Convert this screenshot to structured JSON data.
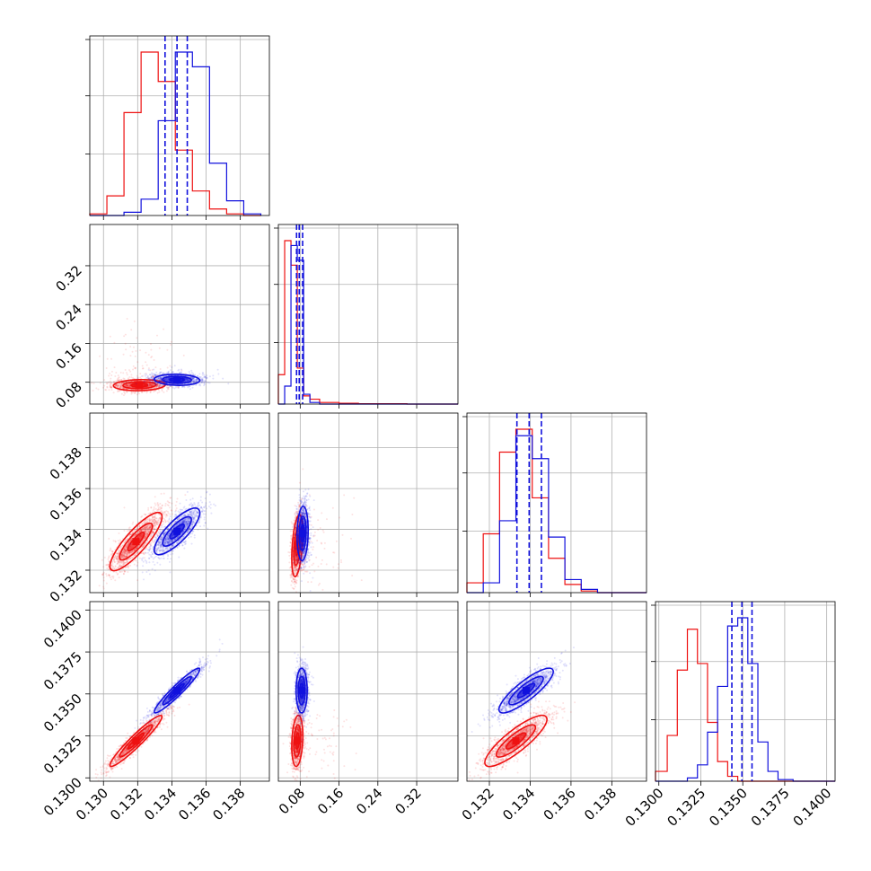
{
  "figure": {
    "type": "corner_plot",
    "n_params": 4,
    "colors": {
      "red": "#ee1111",
      "blue": "#1111dd",
      "grid": "#b0b0b0",
      "axis": "#000000"
    },
    "series": [
      "red",
      "blue"
    ]
  },
  "chart_data": [
    {
      "type": "histogram",
      "panel": "hist-p0",
      "param": 0,
      "xlim": [
        0.1292,
        0.1397
      ],
      "red": {
        "bins": [
          0.1292,
          0.1302,
          0.1312,
          0.1322,
          0.1332,
          0.1342,
          0.1352,
          0.1362,
          0.1372,
          0.1382,
          0.1392
        ],
        "heights_fraction": [
          0.01,
          0.12,
          0.63,
          1.0,
          0.82,
          0.4,
          0.15,
          0.04,
          0.01,
          0.0
        ]
      },
      "blue": {
        "bins": [
          0.1292,
          0.1302,
          0.1312,
          0.1322,
          0.1332,
          0.1342,
          0.1352,
          0.1362,
          0.1372,
          0.1382,
          0.1392
        ],
        "heights_fraction": [
          0.0,
          0.0,
          0.02,
          0.1,
          0.58,
          1.0,
          0.91,
          0.32,
          0.09,
          0.01
        ]
      },
      "quantile_lines": [
        0.1336,
        0.1343,
        0.1349
      ]
    },
    {
      "type": "histogram",
      "panel": "hist-p1",
      "param": 1,
      "xlim": [
        0.035,
        0.405
      ],
      "red": {
        "bins": [
          0.035,
          0.048,
          0.061,
          0.074,
          0.087,
          0.1,
          0.12,
          0.16,
          0.2,
          0.3,
          0.405
        ],
        "heights_fraction": [
          0.18,
          1.0,
          0.85,
          0.22,
          0.05,
          0.03,
          0.01,
          0.005,
          0.002,
          0.0
        ]
      },
      "blue": {
        "bins": [
          0.035,
          0.048,
          0.061,
          0.074,
          0.087,
          0.1,
          0.12,
          0.16,
          0.2,
          0.3,
          0.405
        ],
        "heights_fraction": [
          0.0,
          0.11,
          0.97,
          0.88,
          0.06,
          0.01,
          0.0,
          0.0,
          0.0,
          0.0
        ]
      },
      "quantile_lines": [
        0.0725,
        0.078,
        0.085
      ]
    },
    {
      "type": "histogram",
      "panel": "hist-p2",
      "param": 2,
      "xlim": [
        0.1309,
        0.1397
      ],
      "red": {
        "bins": [
          0.1309,
          0.1317,
          0.1325,
          0.1333,
          0.1341,
          0.1349,
          0.1357,
          0.1365,
          0.1373,
          0.1381,
          0.1397
        ],
        "heights_fraction": [
          0.06,
          0.36,
          0.86,
          1.0,
          0.58,
          0.21,
          0.05,
          0.01,
          0.0,
          0.0
        ]
      },
      "blue": {
        "bins": [
          0.1309,
          0.1317,
          0.1325,
          0.1333,
          0.1341,
          0.1349,
          0.1357,
          0.1365,
          0.1373,
          0.1381,
          0.1397
        ],
        "heights_fraction": [
          0.0,
          0.06,
          0.44,
          0.96,
          0.82,
          0.34,
          0.08,
          0.02,
          0.0,
          0.0
        ]
      },
      "quantile_lines": [
        0.13335,
        0.13395,
        0.13455
      ]
    },
    {
      "type": "histogram",
      "panel": "hist-p3",
      "param": 3,
      "xlim": [
        0.1298,
        0.1405
      ],
      "red": {
        "bins": [
          0.1298,
          0.1305,
          0.1311,
          0.1317,
          0.1323,
          0.1329,
          0.1335,
          0.1341,
          0.1347,
          0.1353,
          0.1359,
          0.1365,
          0.1371,
          0.138,
          0.1405
        ],
        "heights_fraction": [
          0.06,
          0.28,
          0.68,
          0.93,
          0.72,
          0.36,
          0.12,
          0.03,
          0.0,
          0.0,
          0.0,
          0.0,
          0.0,
          0.0
        ]
      },
      "blue": {
        "bins": [
          0.1298,
          0.1305,
          0.1311,
          0.1317,
          0.1323,
          0.1329,
          0.1335,
          0.1341,
          0.1347,
          0.1353,
          0.1359,
          0.1365,
          0.1371,
          0.138,
          0.1405
        ],
        "heights_fraction": [
          0.0,
          0.0,
          0.0,
          0.02,
          0.1,
          0.3,
          0.58,
          0.95,
          1.0,
          0.72,
          0.24,
          0.06,
          0.01,
          0.0
        ]
      },
      "quantile_lines": [
        0.13435,
        0.13495,
        0.13555
      ]
    },
    {
      "type": "scatter",
      "panel": "scatter-p1-vs-p0",
      "xparam": 0,
      "yparam": 1,
      "red": {
        "mean": [
          0.1321,
          0.074
        ],
        "sd": [
          0.0008,
          0.006
        ],
        "rho": 0.1,
        "tail_sd": [
          0.0012,
          0.06
        ]
      },
      "blue": {
        "mean": [
          0.1343,
          0.085
        ],
        "sd": [
          0.0007,
          0.006
        ],
        "rho": -0.1,
        "tail_sd": [
          0.001,
          0.01
        ]
      }
    },
    {
      "type": "scatter",
      "panel": "scatter-p2-vs-p0",
      "xparam": 0,
      "yparam": 2,
      "red": {
        "mean": [
          0.1319,
          0.1334
        ],
        "sd": [
          0.0008,
          0.00075
        ],
        "rho": 0.85,
        "tail_sd": [
          0.0012,
          0.0011
        ]
      },
      "blue": {
        "mean": [
          0.1343,
          0.1339
        ],
        "sd": [
          0.0007,
          0.0006
        ],
        "rho": 0.8,
        "tail_sd": [
          0.001,
          0.0009
        ]
      }
    },
    {
      "type": "scatter",
      "panel": "scatter-p2-vs-p1",
      "xparam": 1,
      "yparam": 2,
      "red": {
        "mean": [
          0.074,
          0.1332
        ],
        "sd": [
          0.006,
          0.0008
        ],
        "rho": 0.4,
        "tail_sd": [
          0.05,
          0.0012
        ]
      },
      "blue": {
        "mean": [
          0.085,
          0.1338
        ],
        "sd": [
          0.006,
          0.0007
        ],
        "rho": 0.1,
        "tail_sd": [
          0.01,
          0.001
        ]
      }
    },
    {
      "type": "scatter",
      "panel": "scatter-p3-vs-p0",
      "xparam": 0,
      "yparam": 3,
      "red": {
        "mean": [
          0.1319,
          0.1322
        ],
        "sd": [
          0.0008,
          0.0008
        ],
        "rho": 0.95,
        "tail_sd": [
          0.0012,
          0.0011
        ]
      },
      "blue": {
        "mean": [
          0.1343,
          0.1352
        ],
        "sd": [
          0.0007,
          0.0007
        ],
        "rho": 0.95,
        "tail_sd": [
          0.001,
          0.001
        ]
      }
    },
    {
      "type": "scatter",
      "panel": "scatter-p3-vs-p1",
      "xparam": 1,
      "yparam": 3,
      "red": {
        "mean": [
          0.074,
          0.1322
        ],
        "sd": [
          0.006,
          0.0008
        ],
        "rho": 0.2,
        "tail_sd": [
          0.05,
          0.0011
        ]
      },
      "blue": {
        "mean": [
          0.083,
          0.1352
        ],
        "sd": [
          0.006,
          0.0007
        ],
        "rho": 0.0,
        "tail_sd": [
          0.01,
          0.001
        ]
      }
    },
    {
      "type": "scatter",
      "panel": "scatter-p3-vs-p2",
      "xparam": 2,
      "yparam": 3,
      "red": {
        "mean": [
          0.1333,
          0.1322
        ],
        "sd": [
          0.0008,
          0.0008
        ],
        "rho": 0.85,
        "tail_sd": [
          0.0012,
          0.0011
        ]
      },
      "blue": {
        "mean": [
          0.1338,
          0.1352
        ],
        "sd": [
          0.0007,
          0.0007
        ],
        "rho": 0.85,
        "tail_sd": [
          0.001,
          0.001
        ]
      }
    }
  ],
  "axes": {
    "p0": {
      "lim": [
        0.1292,
        0.1397
      ],
      "ticks": [
        0.13,
        0.132,
        0.134,
        0.136,
        0.138
      ],
      "ticklabels": [
        "0.130",
        "0.132",
        "0.134",
        "0.136",
        "0.138"
      ]
    },
    "p1": {
      "lim": [
        0.035,
        0.405
      ],
      "ticks": [
        0.08,
        0.16,
        0.24,
        0.32
      ],
      "ticklabels": [
        "0.08",
        "0.16",
        "0.24",
        "0.32"
      ]
    },
    "p2": {
      "lim": [
        0.1309,
        0.1397
      ],
      "ticks": [
        0.132,
        0.134,
        0.136,
        0.138
      ],
      "ticklabels": [
        "0.132",
        "0.134",
        "0.136",
        "0.138"
      ]
    },
    "p3": {
      "lim": [
        0.1298,
        0.1405
      ],
      "ticks": [
        0.13,
        0.1325,
        0.135,
        0.1375,
        0.14
      ],
      "ticklabels": [
        "0.1300",
        "0.1325",
        "0.1350",
        "0.1375",
        "0.1400"
      ]
    }
  }
}
